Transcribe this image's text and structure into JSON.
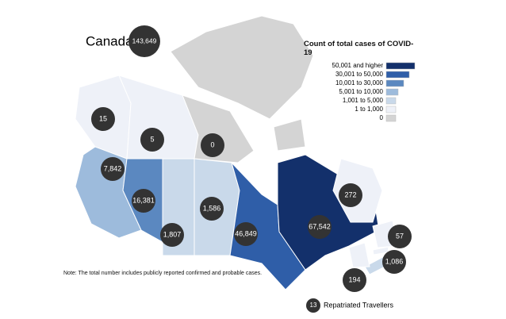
{
  "title": "Canada",
  "total": "143,649",
  "legend": {
    "title": "Count of total cases of COVID-19",
    "items": [
      {
        "label": "50,001 and higher",
        "color": "#13306b"
      },
      {
        "label": "30,001 to 50,000",
        "color": "#2f5ea8"
      },
      {
        "label": "10,001 to 30,000",
        "color": "#5b88c0"
      },
      {
        "label": "5,001 to 10,000",
        "color": "#9dbbdc"
      },
      {
        "label": "1,001 to 5,000",
        "color": "#c9d9ea"
      },
      {
        "label": "1 to 1,000",
        "color": "#eef1f8"
      },
      {
        "label": "0",
        "color": "#d4d4d4"
      }
    ]
  },
  "regions": [
    {
      "label": "15",
      "color": "#eef1f8"
    },
    {
      "label": "5",
      "color": "#eef1f8"
    },
    {
      "label": "0",
      "color": "#d4d4d4"
    },
    {
      "label": "7,842",
      "color": "#9dbbdc"
    },
    {
      "label": "16,381",
      "color": "#5b88c0"
    },
    {
      "label": "1,807",
      "color": "#c9d9ea"
    },
    {
      "label": "1,586",
      "color": "#c9d9ea"
    },
    {
      "label": "46,849",
      "color": "#2f5ea8"
    },
    {
      "label": "67,542",
      "color": "#13306b"
    },
    {
      "label": "272",
      "color": "#eef1f8"
    },
    {
      "label": "57",
      "color": "#eef1f8"
    },
    {
      "label": "1,086",
      "color": "#c9d9ea"
    },
    {
      "label": "194",
      "color": "#eef1f8"
    }
  ],
  "repatriated": {
    "count": "13",
    "label": "Repatriated Travellers"
  },
  "note": "Note: The total number includes publicly reported confirmed and probable cases."
}
